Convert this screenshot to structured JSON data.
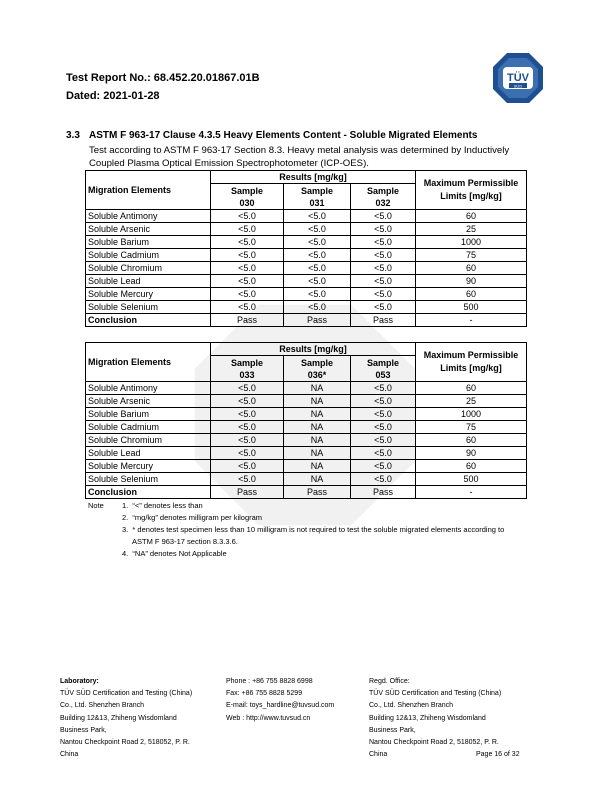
{
  "header": {
    "report_no": "Test Report No.: 68.452.20.01867.01B",
    "dated": "Dated: 2021-01-28",
    "logo_text": "TÜV",
    "logo_subtext": "SÜD"
  },
  "section": {
    "number": "3.3",
    "title": "ASTM F 963-17 Clause 4.3.5 Heavy Elements Content - Soluble Migrated Elements",
    "description": "Test according to ASTM F 963-17 Section 8.3. Heavy metal analysis was determined by Inductively Coupled Plasma Optical Emission Spectrophotometer (ICP-OES)."
  },
  "tables": [
    {
      "col_elements": "Migration Elements",
      "col_results": "Results [mg/kg]",
      "col_limits": "Maximum Permissible Limits [mg/kg]",
      "samples": [
        [
          "Sample",
          "030"
        ],
        [
          "Sample",
          "031"
        ],
        [
          "Sample",
          "032"
        ]
      ],
      "rows": [
        [
          "Soluble Antimony",
          "<5.0",
          "<5.0",
          "<5.0",
          "60"
        ],
        [
          "Soluble Arsenic",
          "<5.0",
          "<5.0",
          "<5.0",
          "25"
        ],
        [
          "Soluble Barium",
          "<5.0",
          "<5.0",
          "<5.0",
          "1000"
        ],
        [
          "Soluble Cadmium",
          "<5.0",
          "<5.0",
          "<5.0",
          "75"
        ],
        [
          "Soluble Chromium",
          "<5.0",
          "<5.0",
          "<5.0",
          "60"
        ],
        [
          "Soluble Lead",
          "<5.0",
          "<5.0",
          "<5.0",
          "90"
        ],
        [
          "Soluble Mercury",
          "<5.0",
          "<5.0",
          "<5.0",
          "60"
        ],
        [
          "Soluble Selenium",
          "<5.0",
          "<5.0",
          "<5.0",
          "500"
        ],
        [
          "Conclusion",
          "Pass",
          "Pass",
          "Pass",
          "-"
        ]
      ]
    },
    {
      "col_elements": "Migration Elements",
      "col_results": "Results [mg/kg]",
      "col_limits": "Maximum Permissible Limits [mg/kg]",
      "samples": [
        [
          "Sample",
          "033"
        ],
        [
          "Sample",
          "036*"
        ],
        [
          "Sample",
          "053"
        ]
      ],
      "rows": [
        [
          "Soluble Antimony",
          "<5.0",
          "NA",
          "<5.0",
          "60"
        ],
        [
          "Soluble Arsenic",
          "<5.0",
          "NA",
          "<5.0",
          "25"
        ],
        [
          "Soluble Barium",
          "<5.0",
          "NA",
          "<5.0",
          "1000"
        ],
        [
          "Soluble Cadmium",
          "<5.0",
          "NA",
          "<5.0",
          "75"
        ],
        [
          "Soluble Chromium",
          "<5.0",
          "NA",
          "<5.0",
          "60"
        ],
        [
          "Soluble Lead",
          "<5.0",
          "NA",
          "<5.0",
          "90"
        ],
        [
          "Soluble Mercury",
          "<5.0",
          "NA",
          "<5.0",
          "60"
        ],
        [
          "Soluble Selenium",
          "<5.0",
          "NA",
          "<5.0",
          "500"
        ],
        [
          "Conclusion",
          "Pass",
          "Pass",
          "Pass",
          "-"
        ]
      ]
    }
  ],
  "notes": {
    "label": "Note",
    "items": [
      "1.  “<” denotes less than",
      "2.  “mg/kg” denotes milligram per kilogram",
      "3.  * denotes test specimen less than 10 milligram is not required to test the soluble migrated elements according to",
      "     ASTM F 963-17 section 8.3.3.6.",
      "4.  “NA” denotes Not Applicable"
    ]
  },
  "footer": {
    "lab": [
      "Laboratory:",
      "TÜV SÜD Certification and Testing (China)",
      "Co., Ltd. Shenzhen Branch",
      "Building 12&13, Zhiheng Wisdomland",
      "Business Park,",
      "Nantou Checkpoint Road 2, 518052, P. R.",
      "China"
    ],
    "contact": [
      "Phone : +86 755 8828 6998",
      "Fax: +86 755 8828 5299",
      "E-mail: toys_hardline@tuvsud.com",
      "Web : http://www.tuvsud.cn"
    ],
    "office": [
      "Regd. Office:",
      "TÜV SÜD Certification and Testing (China)",
      "Co., Ltd. Shenzhen Branch",
      "Building 12&13, Zhiheng Wisdomland",
      "Business Park,",
      "Nantou Checkpoint Road 2, 518052, P. R.",
      "China"
    ],
    "page": "Page 16 of 32"
  }
}
